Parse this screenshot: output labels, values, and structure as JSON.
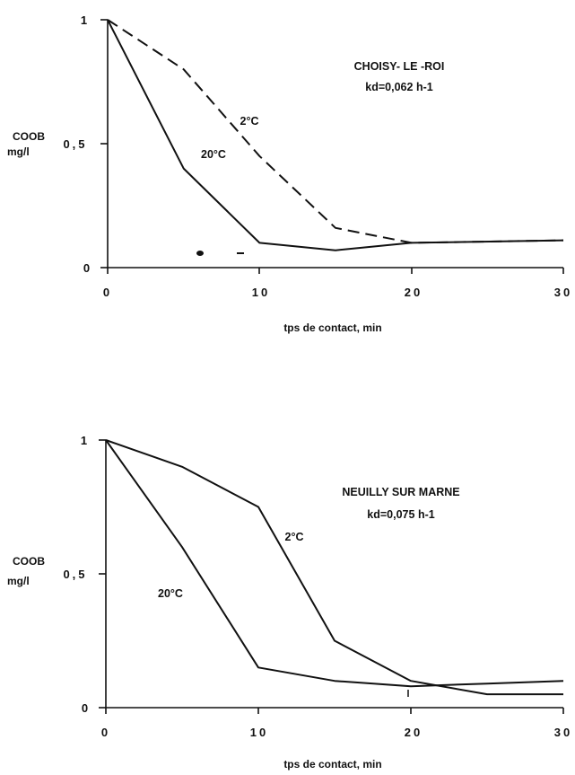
{
  "chart_data": [
    {
      "type": "line",
      "annotation_lines": [
        "CHOISY- LE -ROI",
        "kd=0,062  h-1"
      ],
      "ylabel_lines": [
        "COOB",
        "mg/l"
      ],
      "xlabel": "tps de contact, min",
      "xlim": [
        0,
        30
      ],
      "ylim": [
        0,
        1
      ],
      "xticks": [
        "0",
        "10",
        "20",
        "30"
      ],
      "yticks": [
        "0",
        "0,5",
        "1"
      ],
      "series": [
        {
          "name": "2°C",
          "style": "dashed",
          "x": [
            0,
            5,
            10,
            15,
            20,
            30
          ],
          "y": [
            1.0,
            0.8,
            0.45,
            0.16,
            0.1,
            0.11
          ]
        },
        {
          "name": "20°C",
          "style": "solid",
          "x": [
            0,
            5,
            10,
            15,
            20,
            30
          ],
          "y": [
            1.0,
            0.4,
            0.1,
            0.07,
            0.1,
            0.11
          ]
        }
      ]
    },
    {
      "type": "line",
      "annotation_lines": [
        "NEUILLY SUR MARNE",
        "kd=0,075   h-1"
      ],
      "ylabel_lines": [
        "COOB",
        "mg/l"
      ],
      "xlabel": "tps de contact, min",
      "xlim": [
        0,
        30
      ],
      "ylim": [
        0,
        1
      ],
      "xticks": [
        "0",
        "10",
        "20",
        "30"
      ],
      "yticks": [
        "0",
        "0,5",
        "1"
      ],
      "series": [
        {
          "name": "2°C",
          "style": "solid",
          "x": [
            0,
            5,
            10,
            15,
            20,
            25,
            30
          ],
          "y": [
            1.0,
            0.9,
            0.75,
            0.25,
            0.1,
            0.05,
            0.05
          ]
        },
        {
          "name": "20°C",
          "style": "solid",
          "x": [
            0,
            5,
            10,
            15,
            20,
            25,
            30
          ],
          "y": [
            1.0,
            0.6,
            0.15,
            0.1,
            0.08,
            0.09,
            0.1
          ]
        }
      ]
    }
  ]
}
